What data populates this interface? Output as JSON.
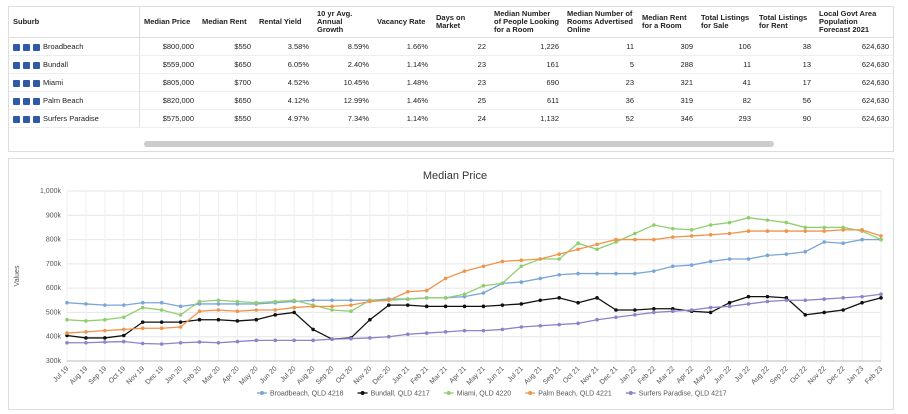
{
  "table": {
    "headers": [
      "Suburb",
      "Median Price",
      "Median Rent",
      "Rental Yield",
      "10 yr Avg. Annual Growth",
      "Vacancy Rate",
      "Days on Market",
      "Median Number of People Looking for a Room",
      "Median Number of Rooms Advertised Online",
      "Median Rent for a Room",
      "Total Listings for Sale",
      "Total Listings for Rent",
      "Local Govt Area Population Forecast 2021"
    ],
    "rows": [
      [
        "Broadbeach",
        "$800,000",
        "$550",
        "3.58%",
        "8.59%",
        "1.66%",
        "22",
        "1,226",
        "11",
        "309",
        "106",
        "38",
        "624,630"
      ],
      [
        "Bundall",
        "$559,000",
        "$650",
        "6.05%",
        "2.40%",
        "1.14%",
        "23",
        "161",
        "5",
        "288",
        "11",
        "13",
        "624,630"
      ],
      [
        "Miami",
        "$805,000",
        "$700",
        "4.52%",
        "10.45%",
        "1.48%",
        "23",
        "690",
        "23",
        "321",
        "41",
        "17",
        "624,630"
      ],
      [
        "Palm Beach",
        "$820,000",
        "$650",
        "4.12%",
        "12.99%",
        "1.46%",
        "25",
        "611",
        "36",
        "319",
        "82",
        "56",
        "624,630"
      ],
      [
        "Surfers Paradise",
        "$575,000",
        "$550",
        "4.97%",
        "7.34%",
        "1.14%",
        "24",
        "1,132",
        "52",
        "346",
        "293",
        "90",
        "624,630"
      ]
    ]
  },
  "chart_data": {
    "type": "line",
    "title": "Median Price",
    "y_label": "Values",
    "grid": true,
    "legend": "bottom",
    "categories": [
      "Jul 19",
      "Aug 19",
      "Sep 19",
      "Oct 19",
      "Nov 19",
      "Dec 19",
      "Jan 20",
      "Feb 20",
      "Mar 20",
      "Apr 20",
      "May 20",
      "Jun 20",
      "Jul 20",
      "Aug 20",
      "Sep 20",
      "Oct 20",
      "Nov 20",
      "Dec 20",
      "Jan 21",
      "Feb 21",
      "Mar 21",
      "Apr 21",
      "May 21",
      "Jun 21",
      "Jul 21",
      "Aug 21",
      "Sep 21",
      "Oct 21",
      "Nov 21",
      "Dec 21",
      "Jan 22",
      "Feb 22",
      "Mar 22",
      "Apr 22",
      "May 22",
      "Jun 22",
      "Jul 22",
      "Aug 22",
      "Sep 22",
      "Oct 22",
      "Nov 22",
      "Dec 22",
      "Jan 23",
      "Feb 23"
    ],
    "ylim": [
      300000,
      1000000
    ],
    "yticks": [
      {
        "value": 300000,
        "label": "300k"
      },
      {
        "value": 400000,
        "label": "400k"
      },
      {
        "value": 500000,
        "label": "500k"
      },
      {
        "value": 600000,
        "label": "600k"
      },
      {
        "value": 700000,
        "label": "700k"
      },
      {
        "value": 800000,
        "label": "800k"
      },
      {
        "value": 900000,
        "label": "900k"
      },
      {
        "value": 1000000,
        "label": "1,000k"
      }
    ],
    "series": [
      {
        "name": "Broadbeach, QLD 4218",
        "color": "#7aa6d6",
        "values": [
          540000,
          535000,
          530000,
          530000,
          540000,
          540000,
          525000,
          535000,
          535000,
          535000,
          535000,
          540000,
          545000,
          550000,
          550000,
          550000,
          550000,
          555000,
          555000,
          560000,
          560000,
          565000,
          580000,
          620000,
          625000,
          640000,
          655000,
          660000,
          660000,
          660000,
          660000,
          670000,
          690000,
          695000,
          710000,
          720000,
          720000,
          735000,
          740000,
          750000,
          790000,
          785000,
          800000,
          800000
        ]
      },
      {
        "name": "Bundall, QLD 4217",
        "color": "#111111",
        "values": [
          405000,
          395000,
          395000,
          405000,
          460000,
          460000,
          460000,
          470000,
          470000,
          465000,
          470000,
          490000,
          500000,
          430000,
          390000,
          395000,
          470000,
          530000,
          530000,
          525000,
          525000,
          525000,
          525000,
          530000,
          535000,
          550000,
          560000,
          540000,
          560000,
          510000,
          510000,
          515000,
          515000,
          505000,
          500000,
          540000,
          565000,
          565000,
          560000,
          490000,
          500000,
          510000,
          540000,
          560000
        ]
      },
      {
        "name": "Miami, QLD 4220",
        "color": "#8fcf6f",
        "values": [
          470000,
          465000,
          470000,
          480000,
          520000,
          510000,
          490000,
          545000,
          550000,
          545000,
          540000,
          545000,
          550000,
          530000,
          510000,
          505000,
          550000,
          550000,
          555000,
          560000,
          560000,
          575000,
          610000,
          620000,
          690000,
          720000,
          720000,
          785000,
          760000,
          790000,
          825000,
          860000,
          845000,
          840000,
          860000,
          870000,
          890000,
          880000,
          870000,
          850000,
          850000,
          850000,
          835000,
          800000
        ]
      },
      {
        "name": "Palm Beach, QLD 4221",
        "color": "#f0944a",
        "values": [
          415000,
          420000,
          425000,
          430000,
          435000,
          435000,
          440000,
          505000,
          510000,
          505000,
          510000,
          510000,
          520000,
          525000,
          525000,
          530000,
          545000,
          550000,
          585000,
          590000,
          640000,
          670000,
          690000,
          710000,
          715000,
          720000,
          740000,
          760000,
          780000,
          800000,
          800000,
          800000,
          810000,
          815000,
          820000,
          825000,
          835000,
          835000,
          835000,
          835000,
          835000,
          840000,
          840000,
          815000
        ]
      },
      {
        "name": "Surfers Paradise, QLD 4217",
        "color": "#8b84c7",
        "values": [
          375000,
          375000,
          378000,
          380000,
          372000,
          370000,
          375000,
          378000,
          375000,
          380000,
          385000,
          385000,
          385000,
          385000,
          390000,
          392000,
          395000,
          400000,
          410000,
          415000,
          420000,
          425000,
          425000,
          430000,
          440000,
          445000,
          450000,
          455000,
          470000,
          480000,
          490000,
          500000,
          505000,
          510000,
          520000,
          525000,
          535000,
          545000,
          550000,
          550000,
          555000,
          560000,
          565000,
          575000
        ]
      }
    ]
  }
}
